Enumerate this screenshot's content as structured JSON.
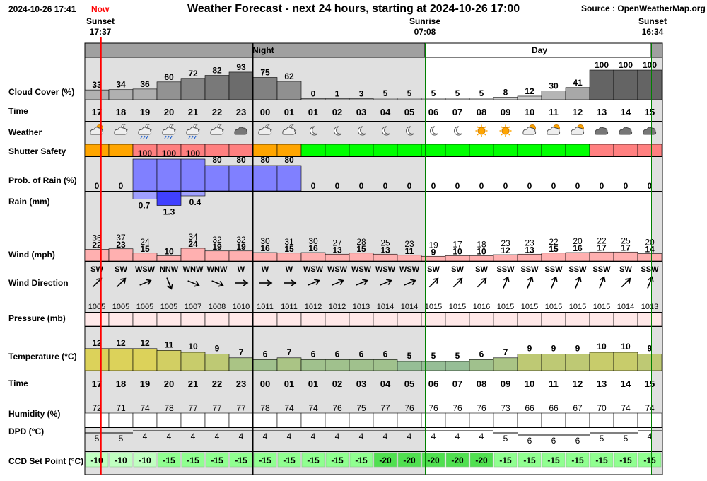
{
  "header": {
    "datetime": "2024-10-26 17:41",
    "now_label": "Now",
    "title": "Weather Forecast - next 24 hours, starting at 2024-10-26 17:00",
    "source": "Source : OpenWeatherMap.org"
  },
  "events": {
    "sunset1_label": "Sunset",
    "sunset1_time": "17:37",
    "sunrise_label": "Sunrise",
    "sunrise_time": "07:08",
    "sunset2_label": "Sunset",
    "sunset2_time": "16:34"
  },
  "bands": {
    "night": "Night",
    "day": "Day"
  },
  "row_labels": {
    "cloud": "Cloud Cover (%)",
    "time": "Time",
    "weather": "Weather",
    "shutter": "Shutter Safety",
    "prob": "Prob. of Rain (%)",
    "rain": "Rain (mm)",
    "wind": "Wind (mph)",
    "wdir": "Wind Direction",
    "pressure": "Pressure (mb)",
    "temp": "Temperature (°C)",
    "time2": "Time",
    "humidity": "Humidity (%)",
    "dpd": "DPD (°C)",
    "ccd": "CCD Set Point (°C)"
  },
  "colors": {
    "shutter_unsafe": "#ff8080",
    "shutter_marginal": "#ffa500",
    "shutter_safe": "#00ff00",
    "rain_prob": "#8080ff",
    "now_line": "#ff0000",
    "ccd_bg": "#90ff90"
  },
  "chart_data": {
    "type": "table",
    "times": [
      "17",
      "18",
      "19",
      "20",
      "21",
      "22",
      "23",
      "00",
      "01",
      "01",
      "02",
      "03",
      "04",
      "05",
      "06",
      "07",
      "08",
      "09",
      "10",
      "11",
      "12",
      "13",
      "14",
      "15"
    ],
    "cloud_cover": [
      33,
      34,
      36,
      60,
      72,
      82,
      93,
      75,
      62,
      0,
      1,
      3,
      5,
      5,
      5,
      5,
      5,
      8,
      12,
      30,
      41,
      100,
      100,
      100
    ],
    "weather_icons": [
      "partly-cloudy-day-icon",
      "partly-cloudy-night-icon",
      "rain-night-icon",
      "rain-night-icon",
      "rain-night-icon",
      "partly-cloudy-night-icon",
      "cloud-icon",
      "partly-cloudy-night-icon",
      "partly-cloudy-night-icon",
      "moon-icon",
      "moon-icon",
      "moon-icon",
      "moon-icon",
      "moon-icon",
      "moon-icon",
      "moon-icon",
      "sun-icon",
      "sun-icon",
      "partly-cloudy-day-icon",
      "partly-cloudy-day-icon",
      "partly-cloudy-day-icon",
      "cloud-icon",
      "cloud-icon",
      "cloud-icon"
    ],
    "shutter_safety": [
      "marginal",
      "marginal",
      "unsafe",
      "unsafe",
      "unsafe",
      "unsafe",
      "unsafe",
      "marginal",
      "marginal",
      "safe",
      "safe",
      "safe",
      "safe",
      "safe",
      "safe",
      "safe",
      "safe",
      "safe",
      "safe",
      "safe",
      "safe",
      "unsafe",
      "unsafe",
      "unsafe"
    ],
    "rain_probability": [
      0,
      0,
      100,
      100,
      100,
      80,
      80,
      80,
      80,
      0,
      0,
      0,
      0,
      0,
      0,
      0,
      0,
      0,
      0,
      0,
      0,
      0,
      0,
      0
    ],
    "rain_mm": [
      null,
      null,
      0.7,
      1.3,
      0.4,
      null,
      null,
      null,
      null,
      null,
      null,
      null,
      null,
      null,
      null,
      null,
      null,
      null,
      null,
      null,
      null,
      null,
      null,
      null
    ],
    "wind_speed": [
      22,
      23,
      15,
      10,
      24,
      19,
      19,
      16,
      15,
      16,
      13,
      15,
      13,
      11,
      9,
      10,
      10,
      12,
      13,
      15,
      16,
      17,
      17,
      14
    ],
    "wind_gust": [
      36,
      37,
      24,
      null,
      34,
      32,
      32,
      30,
      31,
      30,
      27,
      28,
      25,
      23,
      19,
      17,
      18,
      23,
      23,
      22,
      20,
      22,
      25,
      20
    ],
    "wind_direction": [
      "SW",
      "SW",
      "WSW",
      "NNW",
      "WNW",
      "WNW",
      "W",
      "W",
      "W",
      "WSW",
      "WSW",
      "WSW",
      "WSW",
      "WSW",
      "SW",
      "SW",
      "SW",
      "SSW",
      "SSW",
      "SSW",
      "SSW",
      "SSW",
      "SW",
      "SSW"
    ],
    "pressure": [
      1005,
      1005,
      1005,
      1005,
      1007,
      1008,
      1010,
      1011,
      1011,
      1012,
      1012,
      1013,
      1014,
      1014,
      1015,
      1015,
      1016,
      1015,
      1015,
      1015,
      1015,
      1015,
      1014,
      1013
    ],
    "temperature": [
      12,
      12,
      12,
      11,
      10,
      9,
      7,
      6,
      7,
      6,
      6,
      6,
      6,
      5,
      5,
      5,
      6,
      7,
      9,
      9,
      9,
      10,
      10,
      9
    ],
    "humidity": [
      72,
      71,
      74,
      78,
      77,
      77,
      77,
      78,
      74,
      74,
      76,
      75,
      77,
      76,
      76,
      76,
      76,
      73,
      66,
      66,
      67,
      70,
      74,
      74
    ],
    "dpd": [
      5,
      5,
      4,
      4,
      4,
      4,
      4,
      4,
      4,
      4,
      4,
      4,
      4,
      4,
      4,
      4,
      4,
      5,
      6,
      6,
      6,
      5,
      5,
      4
    ],
    "ccd_set_point": [
      -10,
      -10,
      -10,
      -15,
      -15,
      -15,
      -15,
      -15,
      -15,
      -15,
      -15,
      -15,
      -20,
      -20,
      -20,
      -20,
      -20,
      -15,
      -15,
      -15,
      -15,
      -15,
      -15,
      -15
    ]
  }
}
